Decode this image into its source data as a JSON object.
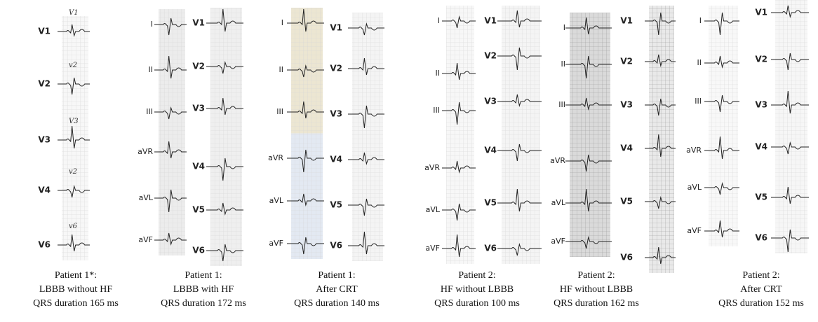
{
  "panels": [
    {
      "columns": [
        {
          "leads": [
            "V1",
            "V2",
            "V3",
            "V4",
            "V6"
          ]
        }
      ],
      "handwriting": [
        "V1",
        "v2",
        "V3",
        "v2",
        "v6"
      ],
      "caption": [
        "Patient 1*:",
        "LBBB without HF",
        "QRS duration 165 ms"
      ]
    },
    {
      "columns": [
        {
          "leads": [
            "I",
            "II",
            "III",
            "aVR",
            "aVL",
            "aVF"
          ]
        },
        {
          "leads": [
            "V1",
            "V2",
            "V3",
            "V4",
            "V5",
            "V6"
          ]
        }
      ],
      "caption": [
        "Patient 1:",
        "LBBB with HF",
        "QRS duration 172 ms"
      ]
    },
    {
      "columns": [
        {
          "leads": [
            "I",
            "II",
            "III",
            "aVR",
            "aVL",
            "aVF"
          ]
        },
        {
          "leads": [
            "V1",
            "V2",
            "V3",
            "V4",
            "V5",
            "V6"
          ]
        }
      ],
      "caption": [
        "Patient 1:",
        "After CRT",
        "QRS duration 140 ms"
      ]
    },
    {
      "columns": [
        {
          "leads": [
            "I",
            "II",
            "III",
            "aVR",
            "aVL",
            "aVF"
          ]
        },
        {
          "leads": [
            "V1",
            "V2",
            "V3",
            "V4",
            "V5",
            "V6"
          ]
        }
      ],
      "caption": [
        "Patient 2:",
        "HF without LBBB",
        "QRS duration 100 ms"
      ]
    },
    {
      "columns": [
        {
          "leads": [
            "I",
            "II",
            "III",
            "aVR",
            "aVL",
            "aVF"
          ]
        },
        {
          "leads": [
            "V1",
            "V2",
            "V3",
            "V4",
            "V5",
            "V6"
          ]
        }
      ],
      "caption": [
        "Patient 2:",
        "HF without LBBB",
        "QRS duration 162 ms"
      ]
    },
    {
      "columns": [
        {
          "leads": [
            "I",
            "II",
            "III",
            "aVR",
            "aVL",
            "aVF"
          ]
        },
        {
          "leads": [
            "V1",
            "V2",
            "V3",
            "V4",
            "V5",
            "V6"
          ]
        }
      ],
      "caption": [
        "Patient 2:",
        "After CRT",
        "QRS duration 152 ms"
      ]
    }
  ]
}
